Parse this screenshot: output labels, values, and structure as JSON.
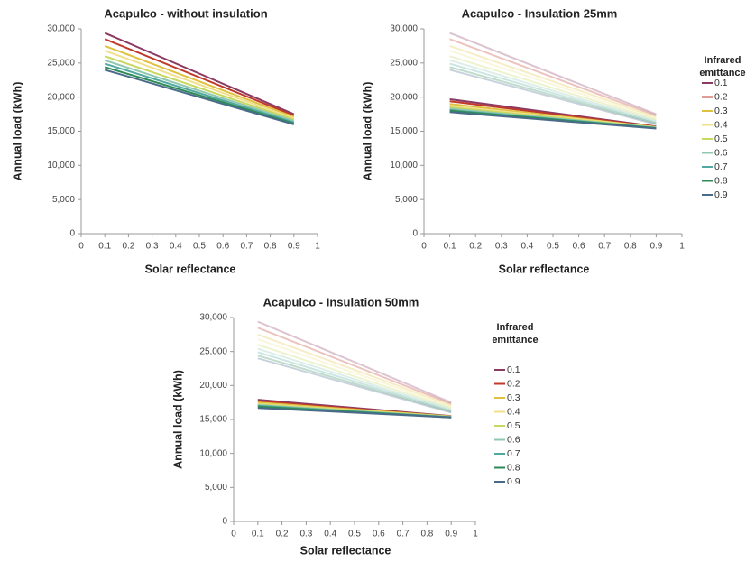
{
  "chart_data": [
    {
      "type": "line",
      "title": "Acapulco - without insulation",
      "xlabel": "Solar reflectance",
      "ylabel": "Annual load  (kWh)",
      "x": [
        0.1,
        0.9
      ],
      "xlim": [
        0,
        1
      ],
      "xticks": [
        0,
        0.1,
        0.2,
        0.3,
        0.4,
        0.5,
        0.6,
        0.7,
        0.8,
        0.9,
        1
      ],
      "ylim": [
        0,
        30000
      ],
      "yticks": [
        0,
        {
          "value": 5000,
          "label": "5,000"
        },
        {
          "value": 10000,
          "label": "10,000"
        },
        {
          "value": 15000,
          "label": "15,000"
        },
        {
          "value": 20000,
          "label": "20,000"
        },
        {
          "value": 25000,
          "label": "25,000"
        },
        {
          "value": 30000,
          "label": "30,000"
        }
      ],
      "grid": false,
      "series": [
        {
          "color": "#8b3a62",
          "values": [
            29400,
            17500
          ]
        },
        {
          "color": "#c0392b",
          "values": [
            28500,
            17300
          ]
        },
        {
          "color": "#e0c040",
          "values": [
            27500,
            17100
          ]
        },
        {
          "color": "#f0e08c",
          "values": [
            26800,
            16900
          ]
        },
        {
          "color": "#c8d860",
          "values": [
            26000,
            16700
          ]
        },
        {
          "color": "#90c8b0",
          "values": [
            25400,
            16500
          ]
        },
        {
          "color": "#50a8a0",
          "values": [
            24900,
            16300
          ]
        },
        {
          "color": "#2e8b57",
          "values": [
            24400,
            16150
          ]
        },
        {
          "color": "#4a6a8a",
          "values": [
            24000,
            16000
          ]
        }
      ]
    },
    {
      "type": "line",
      "title": "Acapulco - Insulation 25mm",
      "xlabel": "Solar reflectance",
      "ylabel": "Annual load  (kWh)",
      "legend_title": "Infrared emittance",
      "x": [
        0.1,
        0.9
      ],
      "xlim": [
        0,
        1
      ],
      "xticks": [
        0,
        0.1,
        0.2,
        0.3,
        0.4,
        0.5,
        0.6,
        0.7,
        0.8,
        0.9,
        1
      ],
      "ylim": [
        0,
        30000
      ],
      "yticks": [
        0,
        {
          "value": 5000,
          "label": "5,000"
        },
        {
          "value": 10000,
          "label": "10,000"
        },
        {
          "value": 15000,
          "label": "15,000"
        },
        {
          "value": 20000,
          "label": "20,000"
        },
        {
          "value": 25000,
          "label": "25,000"
        },
        {
          "value": 30000,
          "label": "30,000"
        }
      ],
      "grid": false,
      "series": [
        {
          "color": "#8b3a62",
          "opacity": 0.3,
          "values": [
            29400,
            17500
          ]
        },
        {
          "color": "#c0392b",
          "opacity": 0.3,
          "values": [
            28500,
            17300
          ]
        },
        {
          "color": "#e0c040",
          "opacity": 0.3,
          "values": [
            27500,
            17100
          ]
        },
        {
          "color": "#f0e08c",
          "opacity": 0.3,
          "values": [
            26800,
            16900
          ]
        },
        {
          "color": "#c8d860",
          "opacity": 0.3,
          "values": [
            26000,
            16700
          ]
        },
        {
          "color": "#90c8b0",
          "opacity": 0.3,
          "values": [
            25400,
            16500
          ]
        },
        {
          "color": "#50a8a0",
          "opacity": 0.3,
          "values": [
            24900,
            16300
          ]
        },
        {
          "color": "#2e8b57",
          "opacity": 0.3,
          "values": [
            24400,
            16150
          ]
        },
        {
          "color": "#4a6a8a",
          "opacity": 0.3,
          "values": [
            24000,
            16000
          ]
        },
        {
          "name": "0.1",
          "color": "#8b3a62",
          "values": [
            19700,
            15700
          ]
        },
        {
          "name": "0.2",
          "color": "#c0392b",
          "values": [
            19400,
            15650
          ]
        },
        {
          "name": "0.3",
          "color": "#e0c040",
          "values": [
            19000,
            15600
          ]
        },
        {
          "name": "0.4",
          "color": "#f0e08c",
          "values": [
            18700,
            15600
          ]
        },
        {
          "name": "0.5",
          "color": "#c8d860",
          "values": [
            18500,
            15550
          ]
        },
        {
          "name": "0.6",
          "color": "#90c8b0",
          "values": [
            18300,
            15500
          ]
        },
        {
          "name": "0.7",
          "color": "#50a8a0",
          "values": [
            18100,
            15500
          ]
        },
        {
          "name": "0.8",
          "color": "#2e8b57",
          "values": [
            18000,
            15450
          ]
        },
        {
          "name": "0.9",
          "color": "#4a6a8a",
          "values": [
            17800,
            15400
          ]
        }
      ]
    },
    {
      "type": "line",
      "title": "Acapulco - Insulation 50mm",
      "xlabel": "Solar reflectance",
      "ylabel": "Annual load (kWh)",
      "legend_title": "Infrared emittance",
      "x": [
        0.1,
        0.9
      ],
      "xlim": [
        0,
        1
      ],
      "xticks": [
        0,
        0.1,
        0.2,
        0.3,
        0.4,
        0.5,
        0.6,
        0.7,
        0.8,
        0.9,
        1
      ],
      "ylim": [
        0,
        30000
      ],
      "yticks": [
        0,
        {
          "value": 5000,
          "label": "5,000"
        },
        {
          "value": 10000,
          "label": "10,000"
        },
        {
          "value": 15000,
          "label": "15,000"
        },
        {
          "value": 20000,
          "label": "20,000"
        },
        {
          "value": 25000,
          "label": "25,000"
        },
        {
          "value": 30000,
          "label": "30,000"
        }
      ],
      "grid": false,
      "series": [
        {
          "color": "#8b3a62",
          "opacity": 0.3,
          "values": [
            29400,
            17500
          ]
        },
        {
          "color": "#c0392b",
          "opacity": 0.3,
          "values": [
            28500,
            17300
          ]
        },
        {
          "color": "#e0c040",
          "opacity": 0.3,
          "values": [
            27500,
            17100
          ]
        },
        {
          "color": "#f0e08c",
          "opacity": 0.3,
          "values": [
            26800,
            16900
          ]
        },
        {
          "color": "#c8d860",
          "opacity": 0.3,
          "values": [
            26000,
            16700
          ]
        },
        {
          "color": "#90c8b0",
          "opacity": 0.3,
          "values": [
            25400,
            16500
          ]
        },
        {
          "color": "#50a8a0",
          "opacity": 0.3,
          "values": [
            24900,
            16300
          ]
        },
        {
          "color": "#2e8b57",
          "opacity": 0.3,
          "values": [
            24400,
            16150
          ]
        },
        {
          "color": "#4a6a8a",
          "opacity": 0.3,
          "values": [
            24000,
            16000
          ]
        },
        {
          "name": "0.1",
          "color": "#8b3a62",
          "values": [
            17900,
            15500
          ]
        },
        {
          "name": "0.2",
          "color": "#c0392b",
          "values": [
            17700,
            15450
          ]
        },
        {
          "name": "0.3",
          "color": "#e0c040",
          "values": [
            17500,
            15450
          ]
        },
        {
          "name": "0.4",
          "color": "#f0e08c",
          "values": [
            17300,
            15400
          ]
        },
        {
          "name": "0.5",
          "color": "#c8d860",
          "values": [
            17200,
            15400
          ]
        },
        {
          "name": "0.6",
          "color": "#90c8b0",
          "values": [
            17100,
            15350
          ]
        },
        {
          "name": "0.7",
          "color": "#50a8a0",
          "values": [
            17000,
            15350
          ]
        },
        {
          "name": "0.8",
          "color": "#2e8b57",
          "values": [
            16900,
            15300
          ]
        },
        {
          "name": "0.9",
          "color": "#4a6a8a",
          "values": [
            16700,
            15300
          ]
        }
      ]
    }
  ]
}
